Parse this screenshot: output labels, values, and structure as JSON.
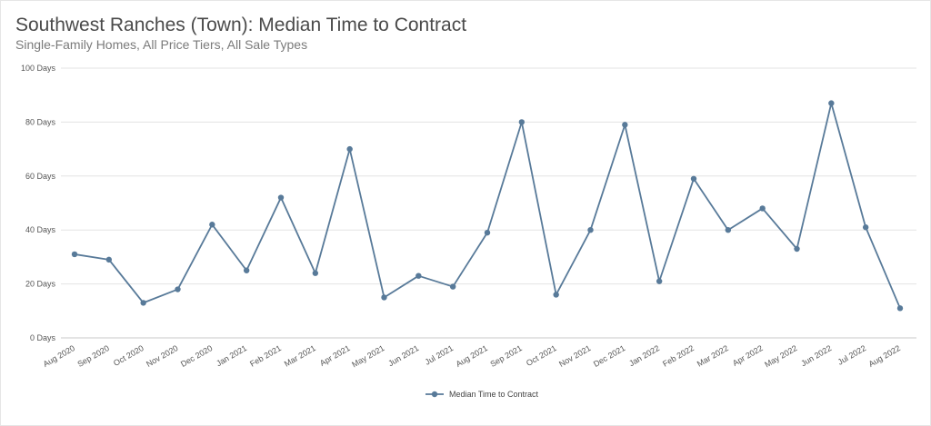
{
  "chart_data": {
    "type": "line",
    "title": "Southwest Ranches (Town): Median Time to Contract",
    "subtitle": "Single-Family Homes, All Price Tiers, All Sale Types",
    "xlabel": "",
    "ylabel": "",
    "categories": [
      "Aug 2020",
      "Sep 2020",
      "Oct 2020",
      "Nov 2020",
      "Dec 2020",
      "Jan 2021",
      "Feb 2021",
      "Mar 2021",
      "Apr 2021",
      "May 2021",
      "Jun 2021",
      "Jul 2021",
      "Aug 2021",
      "Sep 2021",
      "Oct 2021",
      "Nov 2021",
      "Dec 2021",
      "Jan 2022",
      "Feb 2022",
      "Mar 2022",
      "Apr 2022",
      "May 2022",
      "Jun 2022",
      "Jul 2022",
      "Aug 2022"
    ],
    "series": [
      {
        "name": "Median Time to Contract",
        "color": "#587a99",
        "values": [
          31,
          29,
          13,
          18,
          42,
          25,
          52,
          24,
          70,
          15,
          23,
          19,
          39,
          80,
          16,
          40,
          79,
          21,
          59,
          40,
          48,
          33,
          87,
          41,
          11
        ]
      }
    ],
    "ylim": [
      0,
      100
    ],
    "yticks": [
      0,
      20,
      40,
      60,
      80,
      100
    ],
    "ytick_suffix": " Days",
    "grid": true,
    "legend": "bottom-center"
  }
}
